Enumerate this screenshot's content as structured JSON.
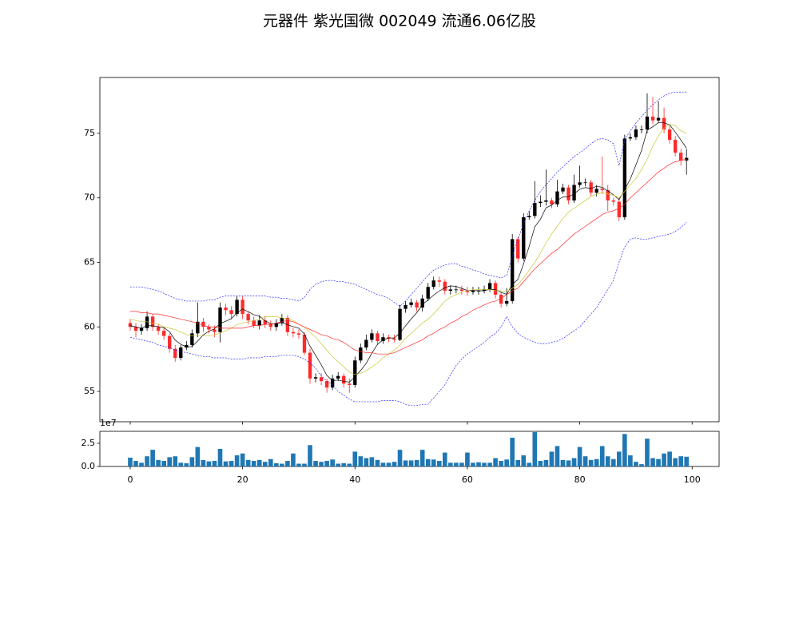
{
  "chart_data": [
    {
      "type": "candlestick",
      "title": "元器件 紫光国微 002049 流通6.06亿股",
      "x": [
        0,
        1,
        2,
        3,
        4,
        5,
        6,
        7,
        8,
        9,
        10,
        11,
        12,
        13,
        14,
        15,
        16,
        17,
        18,
        19,
        20,
        21,
        22,
        23,
        24,
        25,
        26,
        27,
        28,
        29,
        30,
        31,
        32,
        33,
        34,
        35,
        36,
        37,
        38,
        39,
        40,
        41,
        42,
        43,
        44,
        45,
        46,
        47,
        48,
        49,
        50,
        51,
        52,
        53,
        54,
        55,
        56,
        57,
        58,
        59,
        60,
        61,
        62,
        63,
        64,
        65,
        66,
        67,
        68,
        69,
        70,
        71,
        72,
        73,
        74,
        75,
        76,
        77,
        78,
        79,
        80,
        81,
        82,
        83,
        84,
        85,
        86,
        87,
        88,
        89,
        90,
        91,
        92,
        93,
        94,
        95,
        96,
        97,
        98,
        99
      ],
      "open": [
        60.3,
        60.0,
        59.7,
        59.9,
        60.8,
        60.0,
        59.7,
        59.3,
        58.3,
        57.6,
        58.4,
        58.6,
        59.5,
        60.4,
        60.0,
        59.8,
        59.6,
        61.5,
        61.3,
        61.0,
        62.1,
        61.0,
        60.5,
        60.1,
        60.5,
        60.2,
        60.0,
        60.3,
        60.7,
        59.6,
        59.5,
        59.4,
        58.0,
        56.0,
        56.1,
        55.8,
        55.3,
        56.0,
        56.2,
        55.6,
        55.5,
        57.4,
        58.4,
        59.0,
        59.5,
        58.9,
        59.2,
        59.1,
        59.0,
        61.4,
        61.7,
        61.9,
        61.5,
        62.2,
        63.1,
        63.6,
        63.5,
        62.8,
        62.9,
        62.9,
        62.8,
        62.7,
        62.8,
        62.8,
        62.9,
        63.4,
        62.5,
        61.8,
        62.0,
        66.8,
        65.3,
        68.5,
        68.6,
        69.6,
        69.7,
        69.8,
        69.5,
        70.5,
        70.8,
        69.8,
        71.0,
        71.2,
        71.2,
        70.4,
        70.7,
        70.6,
        69.8,
        69.7,
        68.5,
        74.6,
        74.7,
        75.3,
        75.3,
        76.3,
        76.0,
        76.2,
        75.3,
        74.5,
        73.5,
        72.9
      ],
      "high": [
        60.6,
        60.3,
        60.2,
        61.2,
        61.0,
        60.2,
        60.0,
        59.5,
        58.6,
        58.6,
        58.9,
        59.8,
        61.9,
        60.7,
        60.2,
        60.1,
        61.9,
        61.8,
        61.6,
        62.4,
        62.4,
        61.2,
        60.8,
        60.9,
        60.8,
        60.5,
        60.6,
        61.0,
        60.9,
        59.9,
        59.8,
        59.6,
        58.3,
        56.4,
        56.4,
        56.0,
        56.3,
        56.5,
        56.4,
        56.0,
        57.7,
        58.7,
        59.4,
        59.8,
        59.7,
        59.5,
        59.4,
        59.4,
        61.7,
        62.0,
        62.2,
        62.1,
        62.5,
        63.4,
        63.9,
        63.9,
        63.7,
        63.2,
        63.2,
        63.2,
        63.1,
        63.1,
        63.1,
        63.2,
        63.7,
        63.6,
        62.7,
        63.0,
        67.2,
        67.0,
        68.8,
        69.0,
        71.3,
        70.2,
        72.2,
        70.0,
        71.4,
        71.1,
        71.0,
        71.8,
        72.5,
        71.5,
        71.4,
        71.0,
        73.2,
        71.0,
        70.0,
        70.0,
        74.9,
        75.0,
        75.6,
        75.6,
        78.1,
        77.8,
        77.5,
        77.0,
        75.6,
        74.8,
        73.8,
        73.8
      ],
      "low": [
        59.7,
        59.2,
        59.4,
        59.7,
        59.7,
        59.4,
        59.0,
        58.0,
        57.3,
        57.4,
        58.2,
        58.4,
        59.2,
        59.6,
        59.5,
        59.2,
        58.8,
        60.9,
        60.6,
        60.8,
        60.6,
        60.2,
        59.9,
        59.8,
        59.9,
        59.7,
        59.7,
        60.1,
        59.3,
        59.2,
        59.1,
        57.8,
        55.6,
        55.7,
        55.5,
        54.9,
        55.1,
        55.8,
        55.3,
        54.9,
        55.3,
        57.2,
        58.2,
        58.8,
        58.6,
        58.7,
        58.8,
        58.8,
        58.9,
        61.1,
        61.5,
        61.2,
        61.2,
        62.0,
        62.9,
        63.1,
        62.5,
        62.5,
        62.6,
        62.5,
        62.4,
        62.5,
        62.5,
        62.6,
        62.7,
        62.2,
        61.5,
        61.6,
        61.8,
        65.0,
        65.1,
        68.3,
        68.4,
        69.3,
        69.4,
        69.2,
        69.3,
        70.3,
        69.5,
        69.6,
        70.8,
        70.9,
        70.1,
        70.1,
        70.3,
        69.0,
        69.4,
        68.2,
        68.3,
        74.4,
        74.5,
        75.0,
        75.0,
        75.7,
        75.8,
        75.0,
        74.2,
        73.2,
        72.5,
        71.8
      ],
      "close": [
        60.0,
        59.7,
        59.9,
        60.8,
        60.0,
        59.7,
        59.3,
        58.3,
        57.6,
        58.4,
        58.6,
        59.5,
        60.4,
        60.0,
        59.8,
        59.6,
        61.5,
        61.3,
        61.0,
        62.1,
        61.0,
        60.5,
        60.1,
        60.5,
        60.2,
        60.0,
        60.3,
        60.7,
        59.6,
        59.5,
        59.4,
        58.0,
        56.0,
        56.1,
        55.8,
        55.3,
        56.0,
        56.2,
        55.6,
        55.5,
        57.4,
        58.4,
        59.0,
        59.5,
        58.9,
        59.2,
        59.1,
        59.0,
        61.4,
        61.7,
        61.9,
        61.5,
        62.2,
        63.1,
        63.6,
        63.5,
        62.8,
        62.9,
        62.9,
        62.8,
        62.7,
        62.8,
        62.8,
        62.9,
        63.4,
        62.5,
        61.8,
        62.0,
        66.8,
        65.3,
        68.5,
        68.6,
        69.6,
        69.7,
        69.8,
        69.5,
        70.5,
        70.8,
        69.8,
        71.0,
        71.2,
        71.2,
        70.4,
        70.7,
        70.6,
        69.8,
        69.7,
        68.5,
        74.6,
        74.7,
        75.3,
        75.3,
        76.3,
        76.0,
        76.2,
        75.3,
        74.5,
        73.5,
        72.9,
        73.1
      ],
      "up_color": "#000000",
      "down_color": "#ff2a2a",
      "lines": [
        {
          "color": "#000000",
          "dashed": false,
          "values": [
            60.1,
            60.0,
            59.9,
            60.1,
            60.08,
            60.02,
            59.94,
            59.62,
            58.98,
            58.66,
            58.44,
            58.48,
            58.9,
            59.38,
            59.66,
            59.86,
            60.26,
            60.44,
            60.64,
            61.1,
            61.38,
            61.18,
            60.94,
            60.84,
            60.46,
            60.26,
            60.22,
            60.34,
            60.16,
            60.02,
            59.9,
            59.44,
            58.5,
            57.8,
            57.06,
            56.24,
            55.84,
            55.88,
            55.78,
            55.72,
            56.14,
            56.62,
            57.18,
            57.96,
            58.64,
            59.0,
            59.14,
            59.14,
            59.52,
            60.08,
            60.62,
            61.1,
            61.74,
            62.08,
            62.46,
            62.78,
            63.04,
            63.18,
            63.14,
            62.98,
            62.82,
            62.82,
            62.8,
            62.8,
            62.92,
            62.88,
            62.68,
            62.52,
            63.3,
            63.68,
            64.88,
            66.24,
            67.76,
            68.34,
            69.24,
            69.44,
            69.82,
            70.06,
            70.08,
            70.32,
            70.66,
            70.8,
            70.72,
            70.9,
            70.82,
            70.54,
            70.24,
            69.86,
            70.64,
            71.46,
            72.56,
            73.68,
            75.24,
            75.52,
            75.82,
            75.82,
            75.66,
            75.1,
            74.48,
            73.86
          ]
        },
        {
          "color": "#c8c832",
          "dashed": false,
          "values": [
            60.6,
            60.5,
            60.4,
            60.4,
            60.3,
            60.2,
            60.0,
            59.9,
            59.8,
            59.6,
            59.4,
            59.3,
            59.3,
            59.3,
            59.3,
            59.4,
            59.5,
            59.7,
            59.9,
            60.2,
            60.3,
            60.4,
            60.5,
            60.6,
            60.8,
            60.8,
            60.8,
            60.7,
            60.6,
            60.5,
            60.2,
            60.0,
            59.6,
            59.2,
            58.7,
            58.2,
            57.7,
            57.3,
            56.9,
            56.5,
            56.3,
            56.4,
            56.6,
            56.9,
            57.2,
            57.6,
            57.9,
            58.2,
            58.6,
            59.1,
            59.5,
            59.9,
            60.3,
            60.6,
            61.0,
            61.5,
            62.0,
            62.3,
            62.5,
            62.7,
            62.8,
            62.9,
            62.9,
            62.9,
            62.9,
            62.8,
            62.8,
            62.7,
            63.0,
            63.3,
            63.8,
            64.4,
            65.0,
            65.7,
            66.5,
            67.2,
            67.8,
            68.4,
            68.9,
            69.2,
            69.5,
            69.8,
            70.1,
            70.3,
            70.4,
            70.3,
            70.2,
            70.0,
            70.5,
            71.0,
            71.5,
            72.2,
            73.0,
            74.0,
            74.8,
            75.4,
            75.7,
            75.6,
            75.2,
            75.0
          ]
        },
        {
          "color": "#ff2a2a",
          "dashed": false,
          "values": [
            61.2,
            61.2,
            61.1,
            61.1,
            61.0,
            61.0,
            60.9,
            60.8,
            60.7,
            60.6,
            60.5,
            60.4,
            60.3,
            60.1,
            60.0,
            60.0,
            59.9,
            59.9,
            59.9,
            59.9,
            59.9,
            60.0,
            60.1,
            60.1,
            60.2,
            60.2,
            60.3,
            60.4,
            60.5,
            60.4,
            60.2,
            60.0,
            59.8,
            59.6,
            59.4,
            59.3,
            59.1,
            59.0,
            58.8,
            58.5,
            58.2,
            58.1,
            58.0,
            58.0,
            57.9,
            57.9,
            57.9,
            58.0,
            58.2,
            58.4,
            58.6,
            58.8,
            59.0,
            59.3,
            59.5,
            59.8,
            60.0,
            60.3,
            60.5,
            60.8,
            61.0,
            61.3,
            61.5,
            61.7,
            61.9,
            62.0,
            62.2,
            62.5,
            62.8,
            63.0,
            63.5,
            64.0,
            64.5,
            64.9,
            65.3,
            65.7,
            66.0,
            66.4,
            66.8,
            67.2,
            67.5,
            67.8,
            68.1,
            68.4,
            68.7,
            68.9,
            69.0,
            69.2,
            69.5,
            70.0,
            70.4,
            70.8,
            71.2,
            71.6,
            72.0,
            72.3,
            72.6,
            72.8,
            72.9,
            73.0
          ]
        },
        {
          "color": "#2a2aff",
          "dashed": true,
          "values": [
            63.1,
            63.1,
            63.1,
            63.0,
            62.9,
            62.8,
            62.6,
            62.4,
            62.2,
            62.1,
            62.0,
            62.0,
            62.0,
            62.0,
            62.1,
            62.1,
            62.3,
            62.4,
            62.4,
            62.4,
            62.4,
            62.4,
            62.4,
            62.4,
            62.4,
            62.3,
            62.3,
            62.2,
            62.2,
            62.1,
            62.0,
            62.3,
            62.9,
            63.3,
            63.5,
            63.6,
            63.6,
            63.5,
            63.5,
            63.4,
            63.3,
            63.1,
            62.9,
            62.7,
            62.5,
            62.4,
            62.2,
            61.9,
            61.6,
            62.0,
            62.5,
            63.0,
            63.5,
            64.0,
            64.4,
            64.6,
            64.8,
            64.9,
            64.9,
            64.7,
            64.6,
            64.4,
            64.3,
            64.1,
            64.0,
            63.9,
            63.8,
            64.0,
            65.5,
            66.8,
            68.0,
            69.0,
            69.8,
            70.5,
            71.0,
            71.5,
            72.0,
            72.4,
            72.8,
            73.2,
            73.5,
            73.8,
            74.2,
            74.5,
            74.6,
            74.5,
            74.2,
            72.5,
            74.5,
            75.2,
            75.8,
            76.3,
            76.8,
            77.2,
            77.6,
            77.9,
            78.1,
            78.2,
            78.2,
            78.2
          ]
        },
        {
          "color": "#2a2aff",
          "dashed": true,
          "values": [
            59.2,
            59.1,
            59.0,
            58.9,
            58.8,
            58.6,
            58.5,
            58.4,
            58.2,
            58.1,
            58.0,
            57.9,
            57.8,
            57.7,
            57.7,
            57.6,
            57.6,
            57.6,
            57.5,
            57.5,
            57.5,
            57.6,
            57.6,
            57.6,
            57.7,
            57.7,
            57.7,
            57.8,
            57.8,
            57.8,
            57.7,
            57.5,
            57.2,
            56.8,
            56.2,
            55.8,
            55.5,
            55.0,
            54.7,
            54.4,
            54.2,
            54.2,
            54.2,
            54.2,
            54.2,
            54.3,
            54.3,
            54.3,
            54.2,
            54.0,
            53.9,
            53.9,
            54.0,
            54.0,
            54.5,
            55.0,
            55.5,
            56.3,
            57.0,
            57.5,
            57.9,
            58.2,
            58.5,
            58.8,
            59.2,
            59.5,
            60.0,
            60.8,
            60.0,
            59.5,
            59.2,
            59.0,
            58.8,
            58.7,
            58.7,
            58.8,
            58.9,
            59.1,
            59.4,
            59.7,
            60.0,
            60.5,
            61.0,
            61.5,
            62.2,
            62.9,
            63.6,
            65.0,
            66.2,
            66.8,
            66.9,
            66.8,
            66.8,
            66.9,
            67.0,
            67.1,
            67.2,
            67.4,
            67.7,
            68.1
          ]
        }
      ],
      "xlim": [
        -5.4,
        104.8
      ],
      "ylim": [
        52.65,
        79.33
      ],
      "yticks": [
        55,
        60,
        65,
        70,
        75
      ]
    },
    {
      "type": "bar",
      "offset_text": "1e7",
      "color": "#1f77b4",
      "values": [
        0.95,
        0.6,
        0.4,
        1.1,
        1.8,
        0.7,
        0.6,
        1.0,
        1.1,
        0.4,
        0.35,
        1.0,
        2.1,
        0.7,
        0.55,
        0.6,
        1.9,
        0.55,
        0.6,
        1.2,
        1.4,
        0.7,
        0.6,
        0.7,
        0.5,
        0.8,
        0.35,
        0.3,
        0.6,
        1.4,
        0.3,
        0.3,
        2.3,
        0.6,
        0.5,
        0.6,
        0.75,
        0.3,
        0.35,
        0.3,
        1.6,
        1.1,
        0.9,
        1.0,
        0.7,
        0.4,
        0.4,
        0.5,
        1.8,
        0.65,
        0.65,
        0.7,
        1.8,
        0.8,
        0.75,
        0.6,
        1.5,
        0.4,
        0.4,
        0.4,
        1.5,
        0.4,
        0.45,
        0.4,
        0.4,
        0.9,
        0.6,
        0.75,
        3.1,
        0.7,
        1.2,
        0.4,
        3.7,
        0.6,
        0.7,
        1.6,
        2.2,
        0.7,
        0.65,
        0.9,
        2.1,
        1.1,
        0.7,
        0.8,
        2.2,
        1.1,
        0.8,
        1.6,
        3.5,
        1.2,
        0.5,
        0.25,
        3.0,
        0.9,
        0.8,
        1.4,
        1.6,
        0.9,
        1.1,
        1.05
      ],
      "xlim": [
        -5.4,
        104.8
      ],
      "ylim": [
        0,
        3.79
      ],
      "xticks": [
        0,
        20,
        40,
        60,
        80,
        100
      ],
      "yticks": [
        {
          "value": 0,
          "label": "0.0"
        },
        2.5
      ]
    }
  ]
}
